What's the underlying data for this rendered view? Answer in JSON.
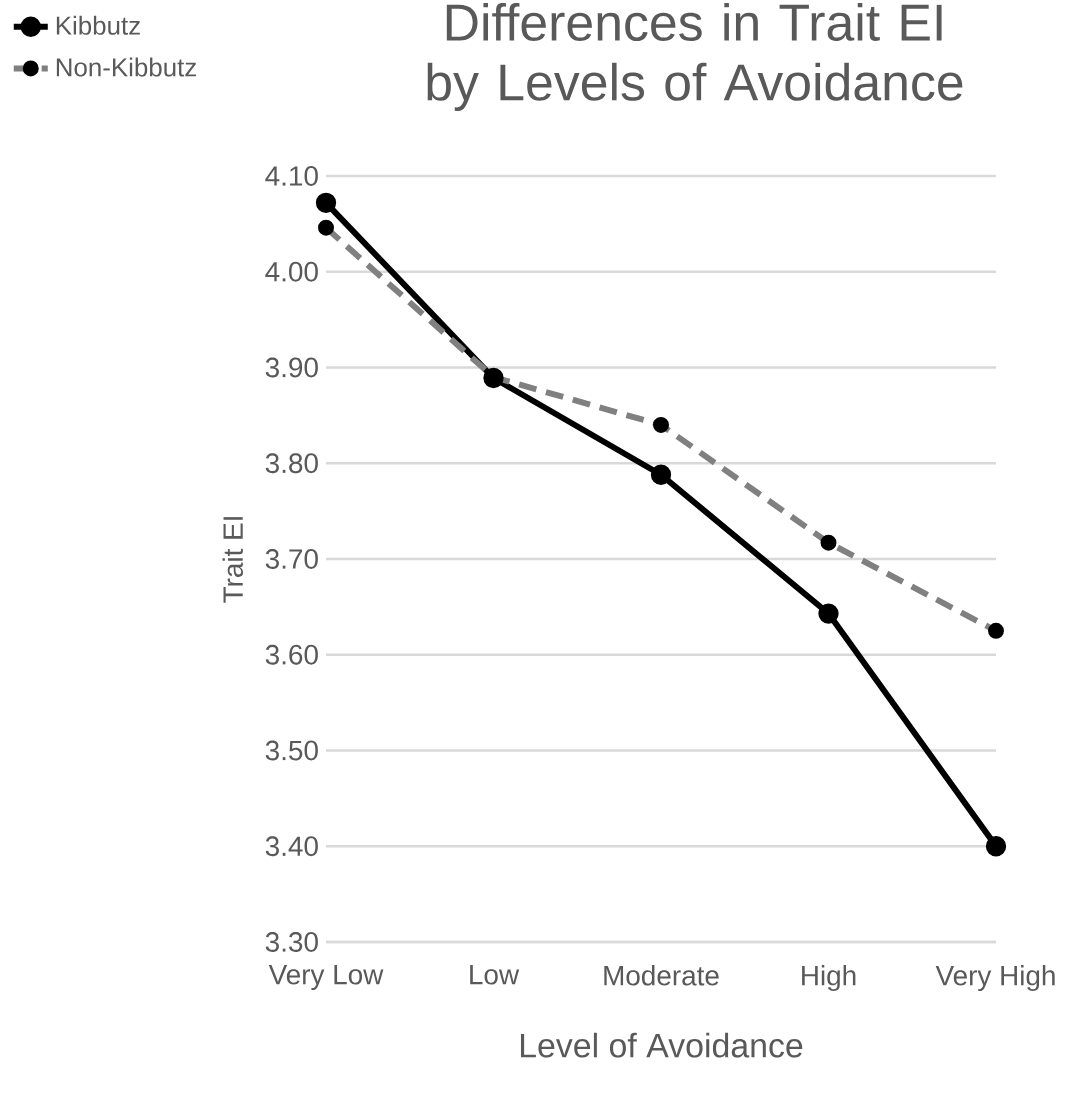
{
  "chart_data": {
    "type": "line",
    "title": "Differences in Trait EI by Levels of Avoidance",
    "xlabel": "Level of Avoidance",
    "ylabel": "Trait EI",
    "categories": [
      "Very Low",
      "Low",
      "Moderate",
      "High",
      "Very High"
    ],
    "series": [
      {
        "name": "Kibbutz",
        "color": "#000000",
        "line_style": "solid",
        "values": [
          4.072,
          3.889,
          3.788,
          3.643,
          3.4
        ]
      },
      {
        "name": "Non-Kibbutz",
        "color": "#808080",
        "line_style": "dashed",
        "values": [
          4.046,
          3.89,
          3.84,
          3.717,
          3.625
        ]
      }
    ],
    "ylim": [
      3.3,
      4.1
    ],
    "yticks": [
      {
        "value": 3.3,
        "label": "3.30"
      },
      {
        "value": 3.4,
        "label": "3.40"
      },
      {
        "value": 3.5,
        "label": "3.50"
      },
      {
        "value": 3.6,
        "label": "3.60"
      },
      {
        "value": 3.7,
        "label": "3.70"
      },
      {
        "value": 3.8,
        "label": "3.80"
      },
      {
        "value": 3.9,
        "label": "3.90"
      },
      {
        "value": 4.0,
        "label": "4.00"
      },
      {
        "value": 4.1,
        "label": "4.10"
      }
    ],
    "grid": "y",
    "legend": "top left",
    "marker": "circle"
  }
}
